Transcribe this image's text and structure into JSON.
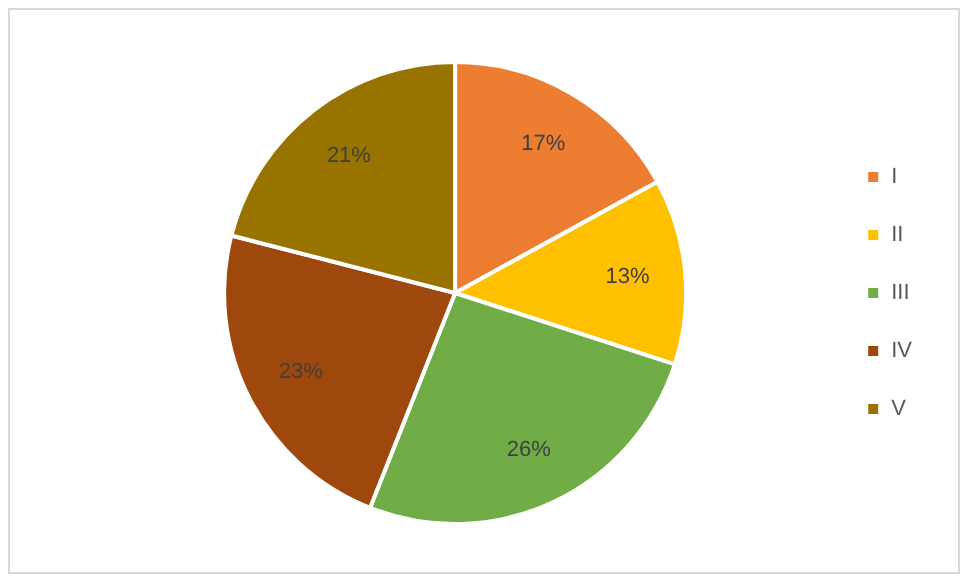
{
  "chart_data": {
    "type": "pie",
    "categories": [
      "I",
      "II",
      "III",
      "IV",
      "V"
    ],
    "values": [
      17,
      13,
      26,
      23,
      21
    ],
    "value_labels": [
      "17%",
      "13%",
      "26%",
      "23%",
      "21%"
    ],
    "colors": [
      "#ed7d31",
      "#ffc000",
      "#70ad47",
      "#9e480e",
      "#997300"
    ],
    "legend": "right"
  }
}
